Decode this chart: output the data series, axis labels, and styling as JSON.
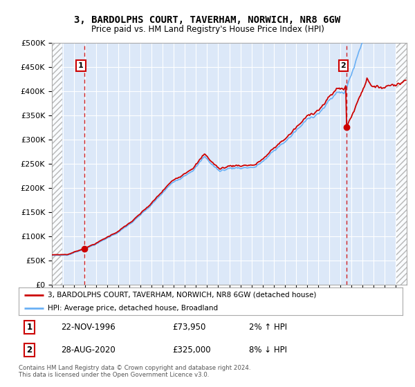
{
  "title": "3, BARDOLPHS COURT, TAVERHAM, NORWICH, NR8 6GW",
  "subtitle": "Price paid vs. HM Land Registry's House Price Index (HPI)",
  "legend_line1": "3, BARDOLPHS COURT, TAVERHAM, NORWICH, NR8 6GW (detached house)",
  "legend_line2": "HPI: Average price, detached house, Broadland",
  "annotation1_label": "1",
  "annotation1_date": "22-NOV-1996",
  "annotation1_price": "£73,950",
  "annotation1_hpi": "2% ↑ HPI",
  "annotation2_label": "2",
  "annotation2_date": "28-AUG-2020",
  "annotation2_price": "£325,000",
  "annotation2_hpi": "8% ↓ HPI",
  "footer": "Contains HM Land Registry data © Crown copyright and database right 2024.\nThis data is licensed under the Open Government Licence v3.0.",
  "ylim": [
    0,
    500000
  ],
  "yticks": [
    0,
    50000,
    100000,
    150000,
    200000,
    250000,
    300000,
    350000,
    400000,
    450000,
    500000
  ],
  "hpi_color": "#6ab0f5",
  "price_color": "#cc0000",
  "bg_color": "#dce8f8",
  "grid_color": "#ffffff",
  "dot_color": "#cc0000",
  "annotation_box_color": "#cc0000",
  "dashed_line_color": "#cc0000",
  "sale1_x": 1996.917,
  "sale1_y": 73950,
  "sale2_x": 2020.583,
  "sale2_y": 325000,
  "xmin": 1994,
  "xmax": 2026
}
